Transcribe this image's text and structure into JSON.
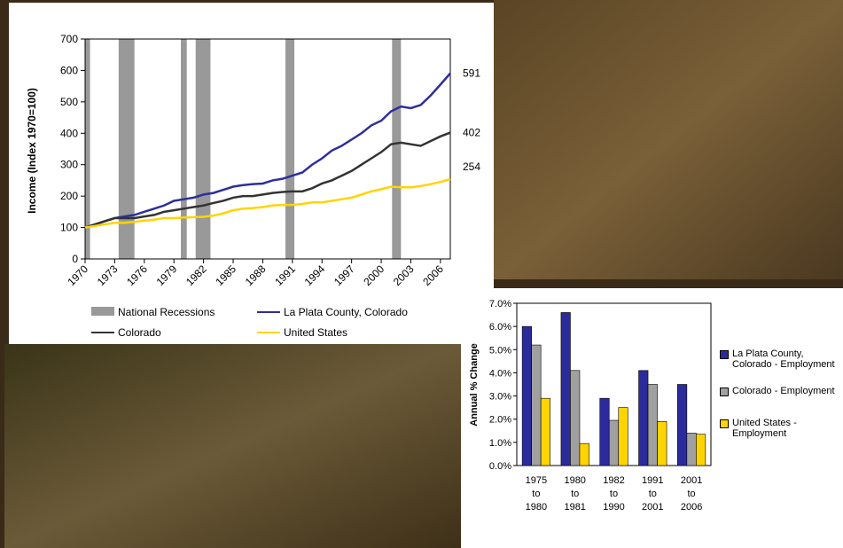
{
  "chart_data": [
    {
      "type": "line",
      "y_label": "Income (Index 1970=100)",
      "x": [
        1970,
        1971,
        1972,
        1973,
        1974,
        1975,
        1976,
        1977,
        1978,
        1979,
        1980,
        1981,
        1982,
        1983,
        1984,
        1985,
        1986,
        1987,
        1988,
        1989,
        1990,
        1991,
        1992,
        1993,
        1994,
        1995,
        1996,
        1997,
        1998,
        1999,
        2000,
        2001,
        2002,
        2003,
        2004,
        2005,
        2006,
        2007
      ],
      "series": [
        {
          "name": "La Plata County, Colorado",
          "color": "#2e2e9c",
          "values": [
            100,
            110,
            120,
            130,
            135,
            140,
            150,
            160,
            170,
            185,
            190,
            195,
            205,
            210,
            220,
            230,
            235,
            238,
            240,
            250,
            255,
            265,
            275,
            300,
            320,
            345,
            360,
            380,
            400,
            425,
            440,
            470,
            485,
            480,
            490,
            520,
            555,
            591
          ]
        },
        {
          "name": "Colorado",
          "color": "#333333",
          "values": [
            100,
            110,
            120,
            130,
            130,
            130,
            135,
            140,
            150,
            155,
            160,
            165,
            170,
            178,
            185,
            195,
            200,
            200,
            205,
            210,
            213,
            215,
            215,
            225,
            240,
            250,
            265,
            280,
            300,
            320,
            340,
            365,
            370,
            365,
            360,
            375,
            390,
            402
          ]
        },
        {
          "name": "United States",
          "color": "#ffd400",
          "values": [
            100,
            105,
            110,
            115,
            115,
            118,
            122,
            125,
            130,
            130,
            132,
            133,
            134,
            138,
            145,
            155,
            160,
            162,
            165,
            170,
            172,
            172,
            175,
            180,
            180,
            185,
            190,
            195,
            205,
            215,
            222,
            230,
            228,
            228,
            232,
            238,
            245,
            254
          ]
        }
      ],
      "recessions": {
        "name": "National Recessions",
        "color": "#999999",
        "ranges": [
          [
            1970,
            1970.5
          ],
          [
            1973.4,
            1975
          ],
          [
            1979.7,
            1980.3
          ],
          [
            1981.2,
            1982.7
          ],
          [
            1990.3,
            1991.2
          ],
          [
            2001.1,
            2002
          ]
        ]
      },
      "xlim": [
        1970,
        2007
      ],
      "xticks": [
        1970,
        1973,
        1976,
        1979,
        1982,
        1985,
        1988,
        1991,
        1994,
        1997,
        2000,
        2003,
        2006
      ],
      "ylim": [
        0,
        700
      ],
      "yticks": [
        0,
        100,
        200,
        300,
        400,
        500,
        600,
        700
      ]
    },
    {
      "type": "bar",
      "y_label": "Annual % Change",
      "categories": [
        [
          "1975",
          "to",
          "1980"
        ],
        [
          "1980",
          "to",
          "1981"
        ],
        [
          "1982",
          "to",
          "1990"
        ],
        [
          "1991",
          "to",
          "2001"
        ],
        [
          "2001",
          "to",
          "2006"
        ]
      ],
      "series": [
        {
          "name": "La Plata County, Colorado - Employment",
          "color": "#2b2b9c",
          "values": [
            6.0,
            6.6,
            2.9,
            4.1,
            3.5
          ]
        },
        {
          "name": "Colorado - Employment",
          "color": "#a0a0a0",
          "values": [
            5.2,
            4.1,
            1.95,
            3.5,
            1.4
          ]
        },
        {
          "name": "United States - Employment",
          "color": "#ffd400",
          "values": [
            2.9,
            0.95,
            2.5,
            1.9,
            1.35
          ]
        }
      ],
      "ylim": [
        0,
        7
      ],
      "yticks": [
        {
          "value": 0,
          "label": "0.0%"
        },
        {
          "value": 1,
          "label": "1.0%"
        },
        {
          "value": 2,
          "label": "2.0%"
        },
        {
          "value": 3,
          "label": "3.0%"
        },
        {
          "value": 4,
          "label": "4.0%"
        },
        {
          "value": 5,
          "label": "5.0%"
        },
        {
          "value": 6,
          "label": "6.0%"
        },
        {
          "value": 7,
          "label": "7.0%"
        }
      ]
    }
  ]
}
